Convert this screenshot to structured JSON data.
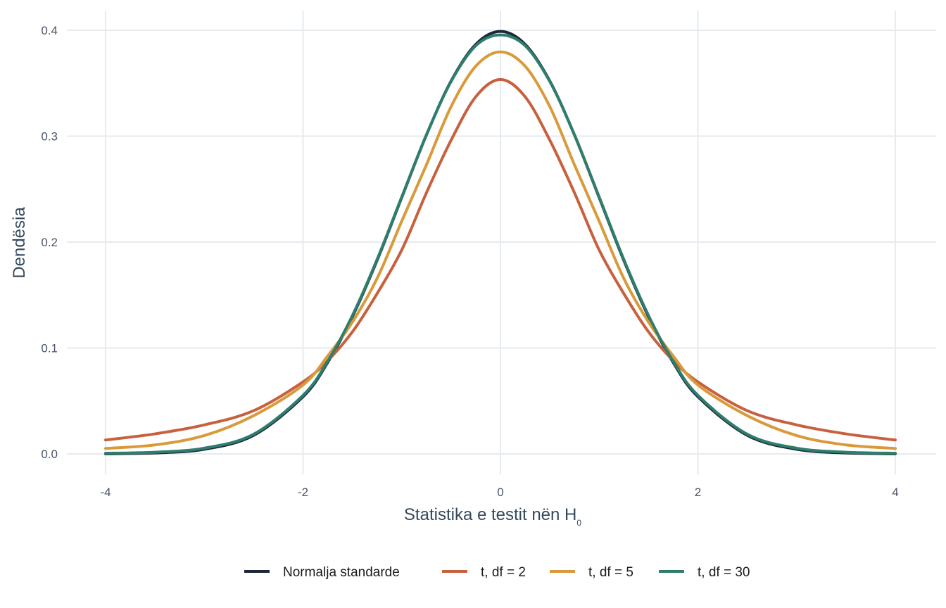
{
  "chart_data": {
    "type": "line",
    "title": "",
    "xlabel": "Statistika e testit nën H",
    "xlabel_subscript": "0",
    "ylabel": "Dendësia",
    "xlim": [
      -4,
      4
    ],
    "ylim": [
      0,
      0.4
    ],
    "x_ticks": [
      -4,
      -2,
      0,
      2,
      4
    ],
    "x_tick_labels": [
      "-4",
      "-2",
      "0",
      "2",
      "4"
    ],
    "y_ticks": [
      0,
      0.1,
      0.2,
      0.3,
      0.4
    ],
    "y_tick_labels": [
      "0.0",
      "0.1",
      "0.2",
      "0.3",
      "0.4"
    ],
    "grid": true,
    "legend_position": "bottom",
    "x": [
      -4,
      -3.5,
      -3,
      -2.5,
      -2,
      -1.75,
      -1.5,
      -1.25,
      -1,
      -0.75,
      -0.5,
      -0.25,
      0,
      0.25,
      0.5,
      0.75,
      1,
      1.25,
      1.5,
      1.75,
      2,
      2.5,
      3,
      3.5,
      4
    ],
    "series": [
      {
        "name": "Normalja standarde",
        "color": "#1b2838",
        "values": [
          0.0001,
          0.0009,
          0.0044,
          0.0175,
          0.054,
          0.0863,
          0.1295,
          0.1826,
          0.242,
          0.3011,
          0.3521,
          0.3867,
          0.3989,
          0.3867,
          0.3521,
          0.3011,
          0.242,
          0.1826,
          0.1295,
          0.0863,
          0.054,
          0.0175,
          0.0044,
          0.0009,
          0.0001
        ]
      },
      {
        "name": "t, df = 2",
        "color": "#c8603e",
        "values": [
          0.0131,
          0.0189,
          0.0274,
          0.0408,
          0.068,
          0.088,
          0.1152,
          0.1513,
          0.1925,
          0.2465,
          0.2962,
          0.3372,
          0.3536,
          0.3372,
          0.2962,
          0.2465,
          0.1925,
          0.1513,
          0.1152,
          0.088,
          0.068,
          0.0408,
          0.0274,
          0.0189,
          0.0131
        ]
      },
      {
        "name": "t, df = 5",
        "color": "#d89a3a",
        "values": [
          0.0051,
          0.0085,
          0.0173,
          0.0361,
          0.0651,
          0.0924,
          0.1245,
          0.1656,
          0.2197,
          0.2729,
          0.3279,
          0.3661,
          0.3796,
          0.3661,
          0.3279,
          0.2729,
          0.2197,
          0.1656,
          0.1245,
          0.0924,
          0.0651,
          0.0361,
          0.0173,
          0.0085,
          0.0051
        ]
      },
      {
        "name": "t, df = 30",
        "color": "#2f7d6d",
        "values": [
          0.0006,
          0.0016,
          0.0054,
          0.0186,
          0.0553,
          0.0874,
          0.1306,
          0.1835,
          0.2426,
          0.3012,
          0.3516,
          0.3854,
          0.3956,
          0.3854,
          0.3516,
          0.3012,
          0.2426,
          0.1835,
          0.1306,
          0.0874,
          0.0553,
          0.0186,
          0.0054,
          0.0016,
          0.0006
        ]
      }
    ]
  }
}
